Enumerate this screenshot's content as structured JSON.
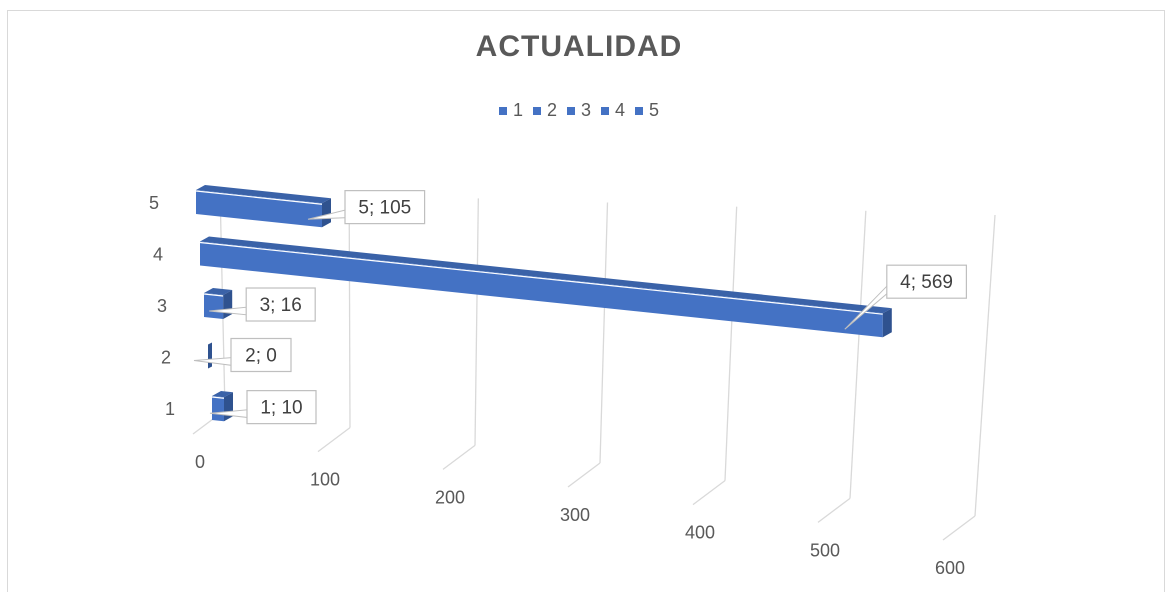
{
  "chart_data": {
    "type": "bar",
    "orientation": "horizontal",
    "style": "3d",
    "title": "ACTUALIDAD",
    "categories": [
      "1",
      "2",
      "3",
      "4",
      "5"
    ],
    "values": [
      10,
      0,
      16,
      569,
      105
    ],
    "data_labels": [
      "1; 10",
      "2; 0",
      "3; 16",
      "4; 569",
      "5; 105"
    ],
    "legend": {
      "entries": [
        "1",
        "2",
        "3",
        "4",
        "5"
      ],
      "placement": "top"
    },
    "xlim": [
      0,
      600
    ],
    "x_ticks": [
      "0",
      "100",
      "200",
      "300",
      "400",
      "500",
      "600"
    ],
    "grid": true,
    "colors": {
      "bar_front": "#4472c4",
      "bar_side": "#2f528f",
      "bar_top": "#3a62a8",
      "gridline": "#d9d9d9",
      "text": "#595959"
    }
  }
}
